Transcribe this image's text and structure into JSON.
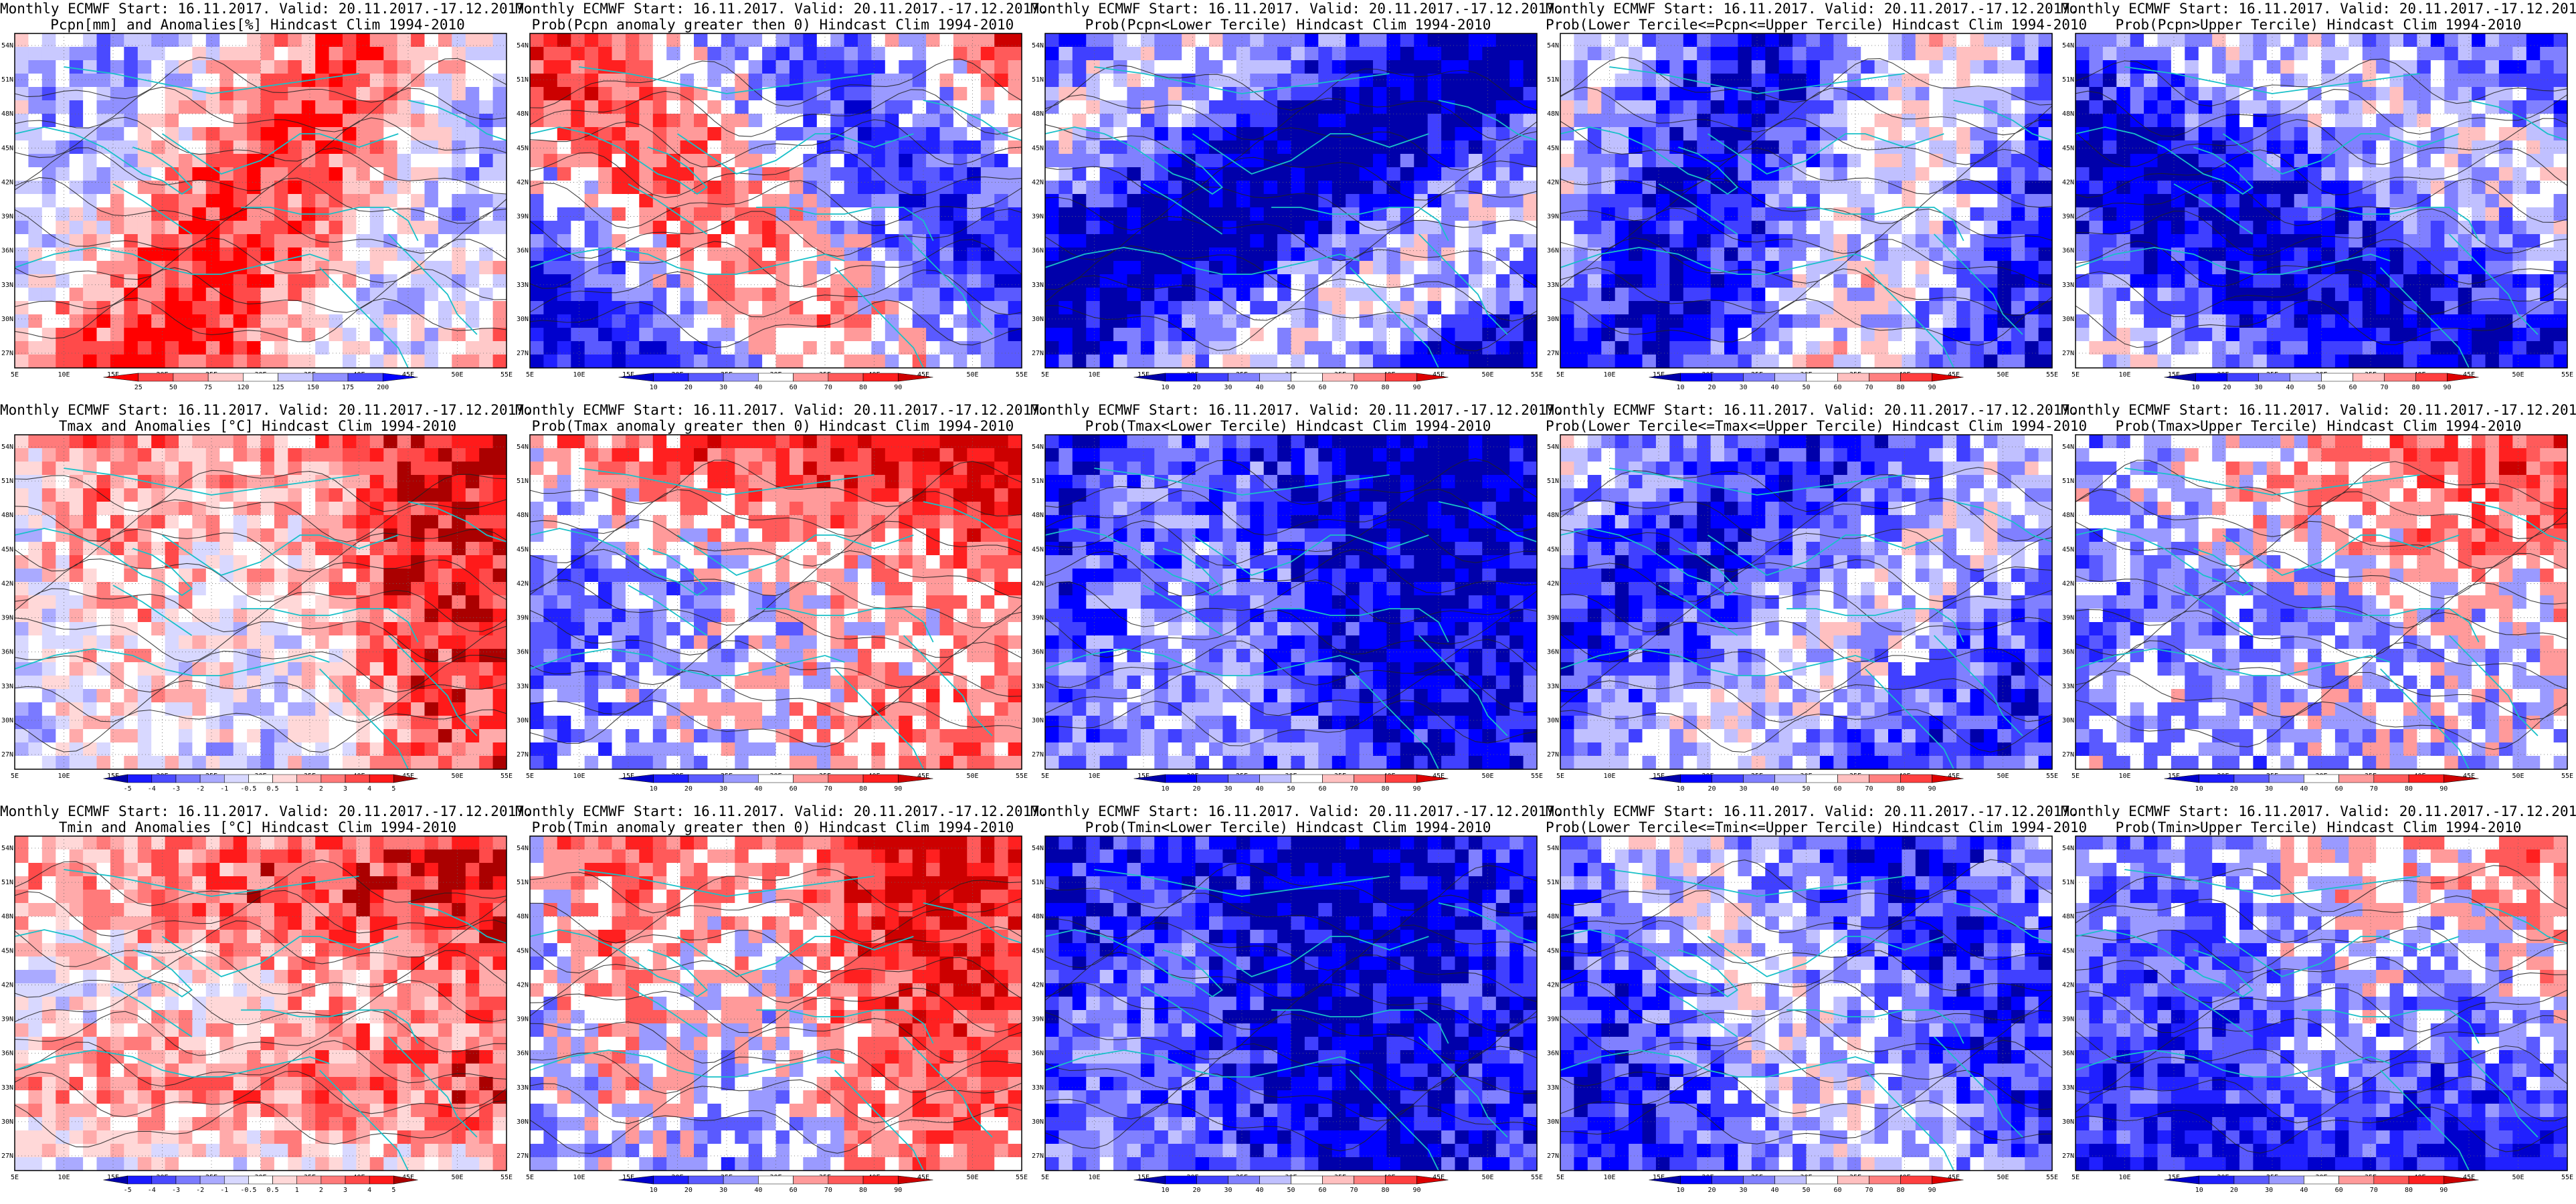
{
  "figure": {
    "columns": 5,
    "rows": 3,
    "lon_ticks": [
      "5E",
      "10E",
      "15E",
      "20E",
      "25E",
      "30E",
      "35E",
      "40E",
      "45E",
      "50E",
      "55E"
    ],
    "lat_ticks": [
      "54N",
      "51N",
      "48N",
      "45N",
      "42N",
      "39N",
      "36N",
      "33N",
      "30N",
      "27N"
    ],
    "coastline_color": "#19c0c8",
    "contour_color": "#222222"
  },
  "panels": [
    {
      "title_line1": "Monthly ECMWF Start: 16.11.2017. Valid: 20.11.2017.-17.12.2017.",
      "title_line2": "Pcpn[mm] and Anomalies[%] Hindcast Clim 1994-2010",
      "colorbar": {
        "labels": [
          "25",
          "50",
          "75",
          "120",
          "125",
          "150",
          "175",
          "200"
        ],
        "colors": [
          "#ff0000",
          "#ff4a4a",
          "#ff9090",
          "#ffc9c9",
          "#ffffff",
          "#c9c9ff",
          "#9090ff",
          "#4a4aff",
          "#0000ff"
        ]
      },
      "field": "precip"
    },
    {
      "title_line1": "Monthly ECMWF Start: 16.11.2017. Valid: 20.11.2017.-17.12.2017.",
      "title_line2": "Prob(Pcpn anomaly greater then 0) Hindcast Clim 1994-2010",
      "colorbar": {
        "labels": [
          "10",
          "20",
          "30",
          "40",
          "60",
          "70",
          "80",
          "90"
        ],
        "colors": [
          "#0000cc",
          "#2020ff",
          "#5a5aff",
          "#9a9aff",
          "#ffffff",
          "#ff9a9a",
          "#ff5a5a",
          "#ff2020",
          "#cc0000"
        ]
      },
      "field": "precip_prob"
    },
    {
      "title_line1": "Monthly ECMWF Start: 16.11.2017. Valid: 20.11.2017.-17.12.2017.",
      "title_line2": "Prob(Pcpn<Lower Tercile) Hindcast Clim 1994-2010",
      "colorbar": {
        "labels": [
          "10",
          "20",
          "30",
          "40",
          "50",
          "60",
          "70",
          "80",
          "90"
        ],
        "colors": [
          "#0000aa",
          "#0000ff",
          "#4040ff",
          "#8080ff",
          "#c0c0ff",
          "#ffffff",
          "#ffc0c0",
          "#ff8080",
          "#ff4040",
          "#dd0000"
        ]
      },
      "field": "precip_lower"
    },
    {
      "title_line1": "Monthly ECMWF Start: 16.11.2017. Valid: 20.11.2017.-17.12.2017.",
      "title_line2": "Prob(Lower Tercile<=Pcpn<=Upper Tercile) Hindcast Clim 1994-2010",
      "colorbar": {
        "labels": [
          "10",
          "20",
          "30",
          "40",
          "50",
          "60",
          "70",
          "80",
          "90"
        ],
        "colors": [
          "#0000aa",
          "#0000ff",
          "#4040ff",
          "#8080ff",
          "#c0c0ff",
          "#ffffff",
          "#ffc0c0",
          "#ff8080",
          "#ff4040",
          "#dd0000"
        ]
      },
      "field": "precip_mid"
    },
    {
      "title_line1": "Monthly ECMWF Start: 16.11.2017. Valid: 20.11.2017.-17.12.2017.",
      "title_line2": "Prob(Pcpn>Upper Tercile) Hindcast Clim 1994-2010",
      "colorbar": {
        "labels": [
          "10",
          "20",
          "30",
          "40",
          "50",
          "60",
          "70",
          "80",
          "90"
        ],
        "colors": [
          "#0000aa",
          "#0000ff",
          "#4040ff",
          "#8080ff",
          "#c0c0ff",
          "#ffffff",
          "#ffc0c0",
          "#ff8080",
          "#ff4040",
          "#dd0000"
        ]
      },
      "field": "precip_upper"
    },
    {
      "title_line1": "Monthly ECMWF Start: 16.11.2017. Valid: 20.11.2017.-17.12.2017.",
      "title_line2": "Tmax and Anomalies [°C] Hindcast Clim 1994-2010",
      "colorbar": {
        "labels": [
          "-5",
          "-4",
          "-3",
          "-2",
          "-1",
          "-0.5",
          "0.5",
          "1",
          "2",
          "3",
          "4",
          "5"
        ],
        "colors": [
          "#0000aa",
          "#1a1aff",
          "#4a4aff",
          "#7a7aff",
          "#aaaaff",
          "#d8d8ff",
          "#ffffff",
          "#ffd8d8",
          "#ffaaaa",
          "#ff7a7a",
          "#ff4a4a",
          "#ff1a1a",
          "#aa0000"
        ]
      },
      "field": "tmax"
    },
    {
      "title_line1": "Monthly ECMWF Start: 16.11.2017. Valid: 20.11.2017.-17.12.2017.",
      "title_line2": "Prob(Tmax anomaly greater then 0) Hindcast Clim 1994-2010",
      "colorbar": {
        "labels": [
          "10",
          "20",
          "30",
          "40",
          "60",
          "70",
          "80",
          "90"
        ],
        "colors": [
          "#0000cc",
          "#2020ff",
          "#5a5aff",
          "#9a9aff",
          "#ffffff",
          "#ff9a9a",
          "#ff5a5a",
          "#ff2020",
          "#cc0000"
        ]
      },
      "field": "tmax_prob"
    },
    {
      "title_line1": "Monthly ECMWF Start: 16.11.2017. Valid: 20.11.2017.-17.12.2017.",
      "title_line2": "Prob(Tmax<Lower Tercile) Hindcast Clim 1994-2010",
      "colorbar": {
        "labels": [
          "10",
          "20",
          "30",
          "40",
          "50",
          "60",
          "70",
          "80",
          "90"
        ],
        "colors": [
          "#0000aa",
          "#0000ff",
          "#4040ff",
          "#8080ff",
          "#c0c0ff",
          "#ffffff",
          "#ffc0c0",
          "#ff8080",
          "#ff4040",
          "#dd0000"
        ]
      },
      "field": "tmax_lower"
    },
    {
      "title_line1": "Monthly ECMWF Start: 16.11.2017. Valid: 20.11.2017.-17.12.2017.",
      "title_line2": "Prob(Lower Tercile<=Tmax<=Upper Tercile) Hindcast Clim 1994-2010",
      "colorbar": {
        "labels": [
          "10",
          "20",
          "30",
          "40",
          "50",
          "60",
          "70",
          "80",
          "90"
        ],
        "colors": [
          "#0000aa",
          "#0000ff",
          "#4040ff",
          "#8080ff",
          "#c0c0ff",
          "#ffffff",
          "#ffc0c0",
          "#ff8080",
          "#ff4040",
          "#dd0000"
        ]
      },
      "field": "tmax_mid"
    },
    {
      "title_line1": "Monthly ECMWF Start: 16.11.2017. Valid: 20.11.2017.-17.12.2017.",
      "title_line2": "Prob(Tmax>Upper Tercile) Hindcast Clim 1994-2010",
      "colorbar": {
        "labels": [
          "10",
          "20",
          "30",
          "40",
          "60",
          "70",
          "80",
          "90"
        ],
        "colors": [
          "#0000cc",
          "#2020ff",
          "#5a5aff",
          "#9a9aff",
          "#ffffff",
          "#ff9a9a",
          "#ff5a5a",
          "#ff2020",
          "#cc0000"
        ]
      },
      "field": "tmax_upper"
    },
    {
      "title_line1": "Monthly ECMWF Start: 16.11.2017. Valid: 20.11.2017.-17.12.2017.",
      "title_line2": "Tmin and Anomalies [°C] Hindcast Clim 1994-2010",
      "colorbar": {
        "labels": [
          "-5",
          "-4",
          "-3",
          "-2",
          "-1",
          "-0.5",
          "0.5",
          "1",
          "2",
          "3",
          "4",
          "5"
        ],
        "colors": [
          "#0000aa",
          "#1a1aff",
          "#4a4aff",
          "#7a7aff",
          "#aaaaff",
          "#d8d8ff",
          "#ffffff",
          "#ffd8d8",
          "#ffaaaa",
          "#ff7a7a",
          "#ff4a4a",
          "#ff1a1a",
          "#aa0000"
        ]
      },
      "field": "tmin"
    },
    {
      "title_line1": "Monthly ECMWF Start: 16.11.2017. Valid: 20.11.2017.-17.12.2017.",
      "title_line2": "Prob(Tmin anomaly greater then 0) Hindcast Clim 1994-2010",
      "colorbar": {
        "labels": [
          "10",
          "20",
          "30",
          "40",
          "60",
          "70",
          "80",
          "90"
        ],
        "colors": [
          "#0000cc",
          "#2020ff",
          "#5a5aff",
          "#9a9aff",
          "#ffffff",
          "#ff9a9a",
          "#ff5a5a",
          "#ff2020",
          "#cc0000"
        ]
      },
      "field": "tmin_prob"
    },
    {
      "title_line1": "Monthly ECMWF Start: 16.11.2017. Valid: 20.11.2017.-17.12.2017.",
      "title_line2": "Prob(Tmin<Lower Tercile) Hindcast Clim 1994-2010",
      "colorbar": {
        "labels": [
          "10",
          "20",
          "30",
          "40",
          "50",
          "60",
          "70",
          "80",
          "90"
        ],
        "colors": [
          "#0000aa",
          "#0000ff",
          "#4040ff",
          "#8080ff",
          "#c0c0ff",
          "#ffffff",
          "#ffc0c0",
          "#ff8080",
          "#ff4040",
          "#dd0000"
        ]
      },
      "field": "tmin_lower"
    },
    {
      "title_line1": "Monthly ECMWF Start: 16.11.2017. Valid: 20.11.2017.-17.12.2017.",
      "title_line2": "Prob(Lower Tercile<=Tmin<=Upper Tercile) Hindcast Clim 1994-2010",
      "colorbar": {
        "labels": [
          "10",
          "20",
          "30",
          "40",
          "50",
          "60",
          "70",
          "80",
          "90"
        ],
        "colors": [
          "#0000aa",
          "#0000ff",
          "#4040ff",
          "#8080ff",
          "#c0c0ff",
          "#ffffff",
          "#ffc0c0",
          "#ff8080",
          "#ff4040",
          "#dd0000"
        ]
      },
      "field": "tmin_mid"
    },
    {
      "title_line1": "Monthly ECMWF Start: 16.11.2017. Valid: 20.11.2017.-17.12.2017.",
      "title_line2": "Prob(Tmin>Upper Tercile) Hindcast Clim 1994-2010",
      "colorbar": {
        "labels": [
          "10",
          "20",
          "30",
          "40",
          "60",
          "70",
          "80",
          "90"
        ],
        "colors": [
          "#0000cc",
          "#2020ff",
          "#5a5aff",
          "#9a9aff",
          "#ffffff",
          "#ff9a9a",
          "#ff5a5a",
          "#ff2020",
          "#cc0000"
        ]
      },
      "field": "tmin_upper"
    }
  ]
}
